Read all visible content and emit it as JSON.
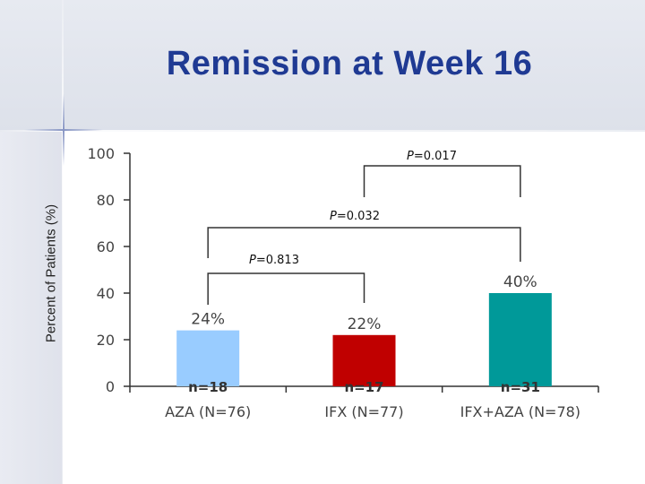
{
  "slide": {
    "title": "Remission at Week 16"
  },
  "chart_data": {
    "type": "bar",
    "categories": [
      "AZA (N=76)",
      "IFX (N=77)",
      "IFX+AZA (N=78)"
    ],
    "values": [
      24,
      22,
      40
    ],
    "value_labels": [
      "24%",
      "22%",
      "40%"
    ],
    "n_labels": [
      "n=18",
      "n=17",
      "n=31"
    ],
    "colors": [
      "#99ccff",
      "#c00000",
      "#009999"
    ],
    "ylabel": "Percent of Patients (%)",
    "ylim": [
      0,
      100
    ],
    "yticks": [
      0,
      20,
      40,
      60,
      80,
      100
    ],
    "grid": false,
    "significance": [
      {
        "from": 0,
        "to": 1,
        "label": "=0.813",
        "prefix": "P"
      },
      {
        "from": 0,
        "to": 2,
        "label": "=0.032",
        "prefix": "P"
      },
      {
        "from": 1,
        "to": 2,
        "label": "=0.017",
        "prefix": "P"
      }
    ]
  }
}
